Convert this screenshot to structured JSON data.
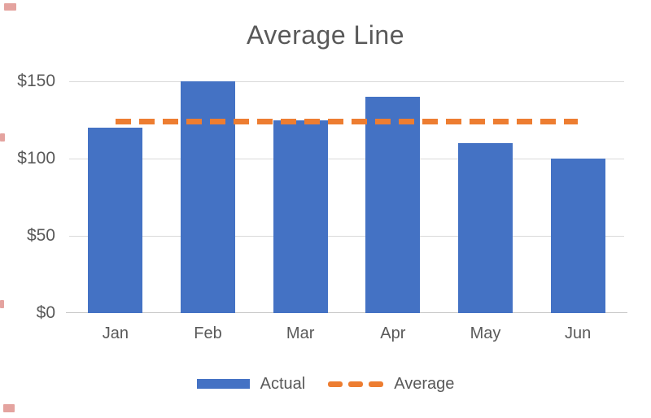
{
  "chart_data": {
    "type": "bar",
    "title": "Average Line",
    "categories": [
      "Jan",
      "Feb",
      "Mar",
      "Apr",
      "May",
      "Jun"
    ],
    "series": [
      {
        "name": "Actual",
        "type": "bar",
        "color": "#4472C4",
        "values": [
          120,
          150,
          125,
          140,
          110,
          100
        ]
      },
      {
        "name": "Average",
        "type": "line",
        "style": "dashed",
        "color": "#ED7D31",
        "values": [
          124.2,
          124.2,
          124.2,
          124.2,
          124.2,
          124.2
        ]
      }
    ],
    "xlabel": "",
    "ylabel": "",
    "ytick_labels": [
      "$150",
      "$100",
      "$50",
      "$0"
    ],
    "ytick_values": [
      150,
      100,
      50,
      0
    ],
    "ylim": [
      0,
      150
    ],
    "grid": true,
    "legend_position": "bottom"
  },
  "legend": {
    "actual_label": "Actual",
    "average_label": "Average"
  },
  "colors": {
    "bar_fill": "#4472C4",
    "average_line": "#ED7D31",
    "axis_text": "#595959",
    "gridline": "#D9D9D9",
    "axis_line": "#C6C6C6",
    "background": "#FFFFFF",
    "watermark_red": "#C3342B"
  }
}
